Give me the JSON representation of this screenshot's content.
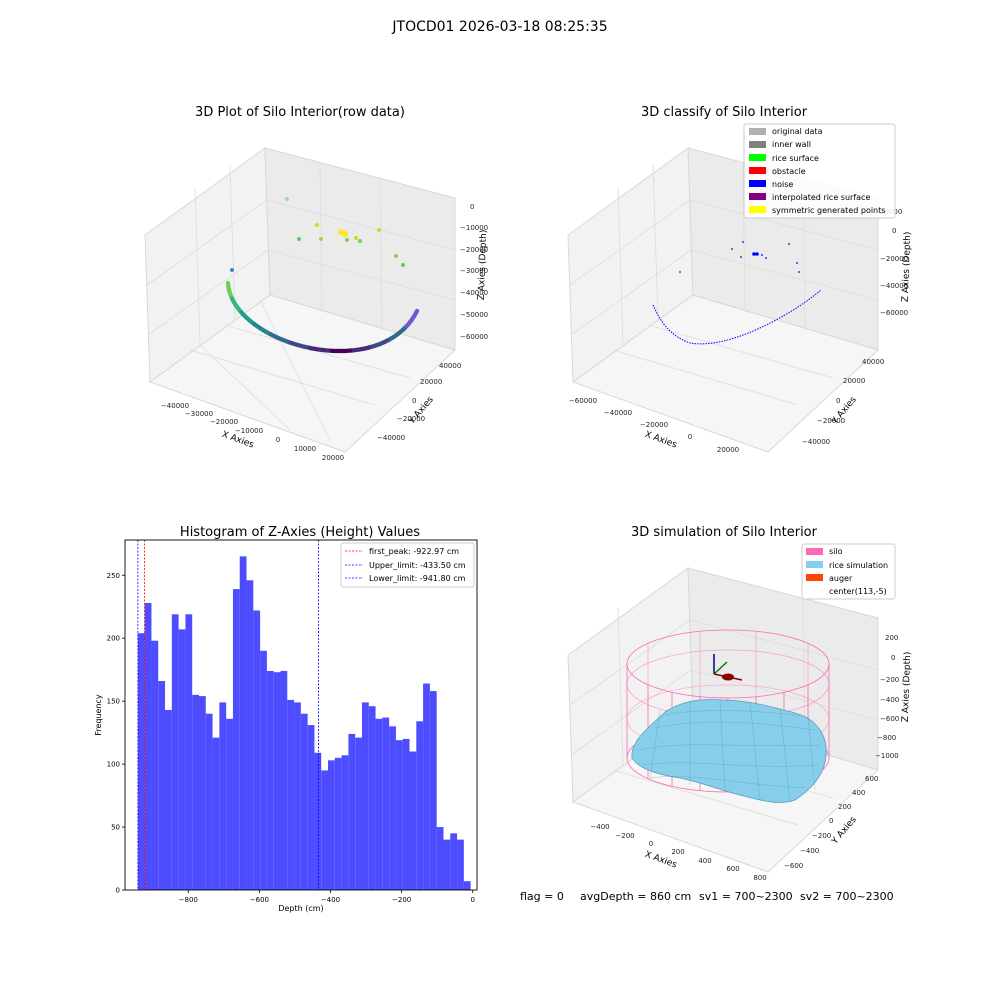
{
  "figure": {
    "suptitle": "JTOCD01 2026-03-18 08:25:35",
    "status_line": {
      "flag": "flag = 0",
      "avg_depth": "avgDepth = 860 cm",
      "sv1": "sv1 = 700~2300",
      "sv2": "sv2 = 700~2300"
    }
  },
  "colors": {
    "hist_bar": "#4d4dff",
    "first_peak": "#ff0000",
    "limits": "#0000ff",
    "pane": "#f2f2f2",
    "grid": "#d9d9d9",
    "silo_wire": "#ff69b4",
    "rice": "#87ceeb",
    "auger": "#ff4500",
    "noise": "#0000ff",
    "original": "#b0b0b0",
    "inner_wall": "#808080",
    "rice_surface": "#00ff00",
    "obstacle": "#ff0000",
    "interpolated": "#800080",
    "symmetric": "#ffff00"
  },
  "chart_data": [
    {
      "type": "scatter",
      "title": "3D Plot of Silo Interior(row data)",
      "xlabel": "X Axies",
      "ylabel": "Y Axies",
      "zlabel": "Z Axies (Depth)",
      "x_ticks": [
        "−40000",
        "−30000",
        "−20000",
        "−10000",
        "0",
        "10000",
        "20000"
      ],
      "y_ticks": [
        "−40000",
        "−20000",
        "0",
        "20000",
        "40000"
      ],
      "z_ticks": [
        "−60000",
        "−50000",
        "−40000",
        "−30000",
        "−20000",
        "−10000",
        "0"
      ],
      "description_series": [
        {
          "name": "",
          "kind": "arc",
          "colormap": "viridis"
        }
      ]
    },
    {
      "type": "scatter",
      "title": "3D classify of Silo Interior",
      "xlabel": "X Axies",
      "ylabel": "Y Axies",
      "zlabel": "Z Axies (Depth)",
      "x_ticks": [
        "−60000",
        "−40000",
        "−20000",
        "0",
        "20000"
      ],
      "y_ticks": [
        "−40000",
        "−20000",
        "0",
        "20000",
        "40000"
      ],
      "z_ticks": [
        "−60000",
        "−40000",
        "−20000",
        "0",
        "20000"
      ],
      "legend": [
        {
          "label": "original data",
          "color": "#b0b0b0"
        },
        {
          "label": "inner wall",
          "color": "#808080"
        },
        {
          "label": "rice surface",
          "color": "#00ff00"
        },
        {
          "label": "obstacle",
          "color": "#ff0000"
        },
        {
          "label": "noise",
          "color": "#0000ff"
        },
        {
          "label": "interpolated rice surface",
          "color": "#800080"
        },
        {
          "label": "symmetric generated points",
          "color": "#ffff00"
        }
      ]
    },
    {
      "type": "bar",
      "title": "Histogram of Z-Axies (Height) Values",
      "xlabel": "Depth (cm)",
      "ylabel": "Frequency",
      "xlim": [
        -978,
        12
      ],
      "ylim": [
        0,
        278
      ],
      "x_ticks": [
        -800,
        -600,
        -400,
        -200,
        0
      ],
      "y_ticks": [
        0,
        50,
        100,
        150,
        200,
        250
      ],
      "bin_width": 19.1,
      "bins_start": [
        -941.8,
        -922.7,
        -903.6,
        -884.5,
        -865.4,
        -846.3,
        -827.2,
        -808.1,
        -789.0,
        -769.9,
        -750.8,
        -731.7,
        -712.6,
        -693.5,
        -674.4,
        -655.3,
        -636.2,
        -617.1,
        -598.0,
        -578.9,
        -559.8,
        -540.7,
        -521.6,
        -502.5,
        -483.4,
        -464.3,
        -445.2,
        -426.1,
        -407.0,
        -387.9,
        -368.8,
        -349.7,
        -330.6,
        -311.5,
        -292.4,
        -273.3,
        -254.2,
        -235.1,
        -216.0,
        -196.9,
        -177.8,
        -158.7,
        -139.6,
        -120.5,
        -101.4,
        -82.3,
        -63.2,
        -44.1,
        -25.0,
        -5.9
      ],
      "values": [
        204,
        228,
        198,
        166,
        143,
        219,
        207,
        219,
        155,
        154,
        140,
        121,
        149,
        136,
        239,
        265,
        246,
        222,
        190,
        174,
        173,
        174,
        151,
        149,
        140,
        131,
        109,
        95,
        103,
        105,
        107,
        124,
        121,
        149,
        146,
        136,
        137,
        130,
        119,
        120,
        110,
        134,
        164,
        158,
        50,
        40,
        45,
        40,
        7,
        0
      ],
      "lines": [
        {
          "label": "first_peak: -922.97 cm",
          "x": -922.97,
          "color": "#ff0000"
        },
        {
          "label": "Upper_limit: -433.50 cm",
          "x": -433.5,
          "color": "#0000ff"
        },
        {
          "label": "Lower_limit: -941.80 cm",
          "x": -941.8,
          "color": "#0000ff"
        }
      ]
    },
    {
      "type": "scatter",
      "title": "3D simulation of Silo Interior",
      "xlabel": "X Axies",
      "ylabel": "Y Axies",
      "zlabel": "Z Axies (Depth)",
      "x_ticks": [
        "−400",
        "−200",
        "0",
        "200",
        "400",
        "600",
        "800"
      ],
      "y_ticks": [
        "−600",
        "−400",
        "−200",
        "0",
        "200",
        "400",
        "600"
      ],
      "z_ticks": [
        "−1000",
        "−800",
        "−600",
        "−400",
        "−200",
        "0",
        "200"
      ],
      "legend": [
        {
          "label": "silo",
          "color": "#ff69b4"
        },
        {
          "label": "rice simulation",
          "color": "#87ceeb"
        },
        {
          "label": "auger",
          "color": "#ff4500"
        },
        {
          "label": "center(113,-5)",
          "color": ""
        }
      ]
    }
  ]
}
